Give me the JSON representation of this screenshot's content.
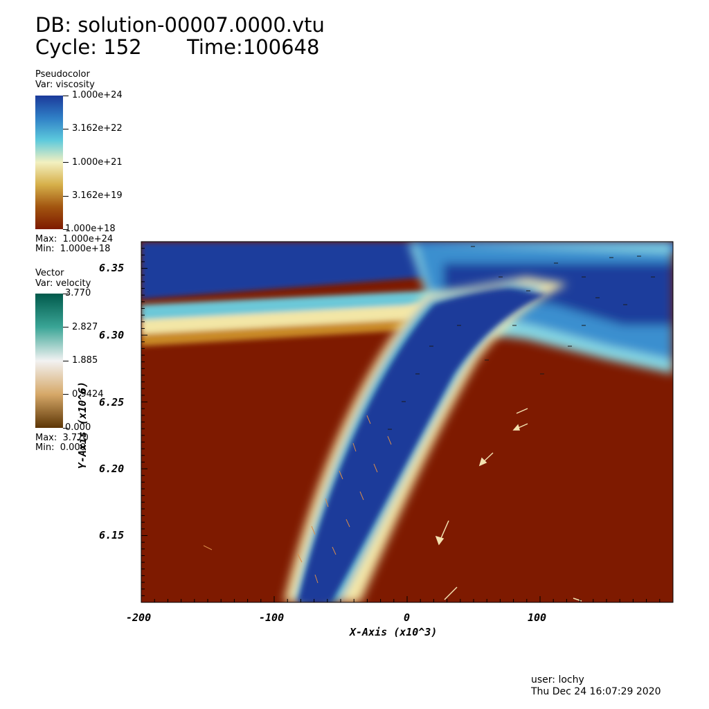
{
  "header": {
    "db_line": "DB: solution-00007.0000.vtu",
    "cycle_label": "Cycle: 152",
    "time_label": "Time:100648"
  },
  "legend_pseudocolor": {
    "plot_type": "Pseudocolor",
    "var_label": "Var: viscosity",
    "ticks": [
      "1.000e+24",
      "3.162e+22",
      "1.000e+21",
      "3.162e+19",
      "1.000e+18"
    ],
    "max_label": "Max:  1.000e+24",
    "min_label": "Min:  1.000e+18",
    "colors": [
      "#1b3a9a",
      "#2f7fc6",
      "#5cc9dc",
      "#f3f0c0",
      "#d6b04a",
      "#a25510",
      "#7e1a00"
    ],
    "scale": "log"
  },
  "legend_vector": {
    "plot_type": "Vector",
    "var_label": "Var: velocity",
    "ticks": [
      "3.770",
      "2.827",
      "1.885",
      "0.9424",
      "0.000"
    ],
    "max_label": "Max:  3.770",
    "min_label": "Min:  0.000",
    "colors": [
      "#01594b",
      "#3aa596",
      "#f2f2f2",
      "#d6a868",
      "#5c3505"
    ]
  },
  "axes": {
    "x_title": "X-Axis (x10^3)",
    "y_title": "Y-Axis (x10^6)",
    "x_ticks": [
      "-200",
      "-100",
      "0",
      "100"
    ],
    "y_ticks": [
      "6.35",
      "6.30",
      "6.25",
      "6.20",
      "6.15"
    ],
    "x_range": [
      -200,
      200
    ],
    "y_range": [
      6.1,
      6.37
    ]
  },
  "field_colors": {
    "low_viscosity": "#7e1a00",
    "high_viscosity": "#1b3a9a"
  },
  "footer": {
    "user": "user: lochy",
    "date": "Thu Dec 24 16:07:29 2020"
  }
}
